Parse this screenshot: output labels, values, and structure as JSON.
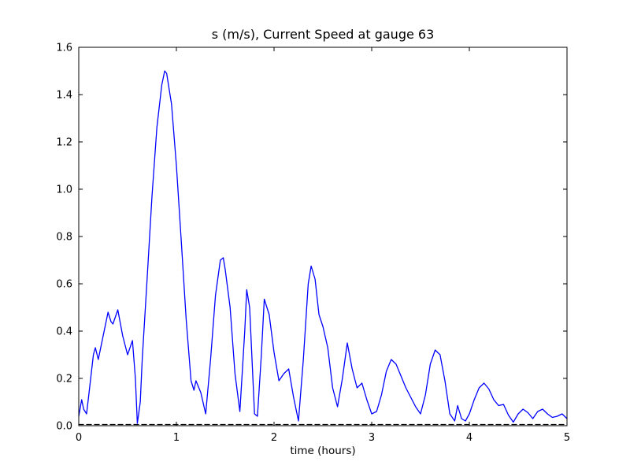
{
  "chart_data": {
    "type": "line",
    "title": "s (m/s), Current Speed at gauge 63",
    "xlabel": "time (hours)",
    "ylabel": "",
    "xlim": [
      0,
      5
    ],
    "ylim": [
      0.0,
      1.6
    ],
    "xticks": [
      0,
      1,
      2,
      3,
      4,
      5
    ],
    "xtick_labels": [
      "0",
      "1",
      "2",
      "3",
      "4",
      "5"
    ],
    "yticks": [
      0.0,
      0.2,
      0.4,
      0.6,
      0.8,
      1.0,
      1.2,
      1.4,
      1.6
    ],
    "ytick_labels": [
      "0.0",
      "0.2",
      "0.4",
      "0.6",
      "0.8",
      "1.0",
      "1.2",
      "1.4",
      "1.6"
    ],
    "grid": false,
    "legend": "none",
    "frame_color": "#000000",
    "background_color": "#ffffff",
    "series": [
      {
        "name": "current-speed",
        "color": "#0000ff",
        "style": "solid",
        "x": [
          0.0,
          0.03,
          0.05,
          0.08,
          0.1,
          0.15,
          0.17,
          0.2,
          0.25,
          0.3,
          0.33,
          0.35,
          0.4,
          0.45,
          0.5,
          0.55,
          0.58,
          0.6,
          0.63,
          0.65,
          0.7,
          0.75,
          0.8,
          0.85,
          0.88,
          0.9,
          0.95,
          1.0,
          1.05,
          1.1,
          1.15,
          1.18,
          1.2,
          1.25,
          1.3,
          1.35,
          1.4,
          1.45,
          1.48,
          1.5,
          1.55,
          1.6,
          1.65,
          1.7,
          1.72,
          1.75,
          1.8,
          1.83,
          1.87,
          1.9,
          1.95,
          2.0,
          2.05,
          2.1,
          2.15,
          2.2,
          2.25,
          2.3,
          2.35,
          2.38,
          2.42,
          2.46,
          2.5,
          2.55,
          2.6,
          2.65,
          2.7,
          2.75,
          2.8,
          2.85,
          2.9,
          2.95,
          3.0,
          3.05,
          3.1,
          3.15,
          3.2,
          3.25,
          3.3,
          3.35,
          3.4,
          3.45,
          3.5,
          3.55,
          3.6,
          3.65,
          3.7,
          3.75,
          3.8,
          3.85,
          3.88,
          3.92,
          3.96,
          4.0,
          4.05,
          4.1,
          4.15,
          4.2,
          4.25,
          4.3,
          4.35,
          4.4,
          4.45,
          4.5,
          4.55,
          4.6,
          4.65,
          4.7,
          4.75,
          4.8,
          4.85,
          4.9,
          4.95,
          5.0
        ],
        "y": [
          0.04,
          0.11,
          0.07,
          0.05,
          0.12,
          0.3,
          0.33,
          0.28,
          0.38,
          0.48,
          0.44,
          0.43,
          0.49,
          0.38,
          0.3,
          0.36,
          0.2,
          0.01,
          0.1,
          0.28,
          0.62,
          0.97,
          1.26,
          1.44,
          1.5,
          1.49,
          1.36,
          1.1,
          0.78,
          0.45,
          0.19,
          0.15,
          0.19,
          0.14,
          0.05,
          0.28,
          0.55,
          0.7,
          0.71,
          0.66,
          0.5,
          0.22,
          0.06,
          0.4,
          0.575,
          0.5,
          0.05,
          0.04,
          0.3,
          0.535,
          0.47,
          0.31,
          0.19,
          0.22,
          0.24,
          0.12,
          0.02,
          0.28,
          0.6,
          0.675,
          0.62,
          0.47,
          0.42,
          0.33,
          0.16,
          0.08,
          0.2,
          0.35,
          0.24,
          0.16,
          0.18,
          0.11,
          0.05,
          0.06,
          0.13,
          0.23,
          0.28,
          0.26,
          0.21,
          0.16,
          0.12,
          0.08,
          0.05,
          0.13,
          0.26,
          0.32,
          0.3,
          0.19,
          0.05,
          0.02,
          0.085,
          0.03,
          0.02,
          0.05,
          0.11,
          0.16,
          0.18,
          0.155,
          0.11,
          0.085,
          0.09,
          0.045,
          0.015,
          0.05,
          0.07,
          0.055,
          0.03,
          0.06,
          0.07,
          0.05,
          0.035,
          0.04,
          0.05,
          0.03
        ]
      },
      {
        "name": "zero-baseline",
        "color": "#000000",
        "style": "dashed",
        "x": [
          0,
          5
        ],
        "y": [
          0.005,
          0.005
        ]
      }
    ]
  }
}
